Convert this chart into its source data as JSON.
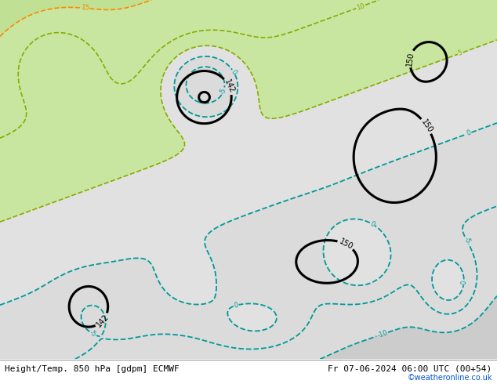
{
  "title_left": "Height/Temp. 850 hPa [gdpm] ECMWF",
  "title_right": "Fr 07-06-2024 06:00 UTC (00+54)",
  "credit": "©weatheronline.co.uk",
  "figsize": [
    6.34,
    4.9
  ],
  "dpi": 100,
  "credit_color": "#0055cc",
  "title_font_size": 8,
  "credit_font_size": 7
}
